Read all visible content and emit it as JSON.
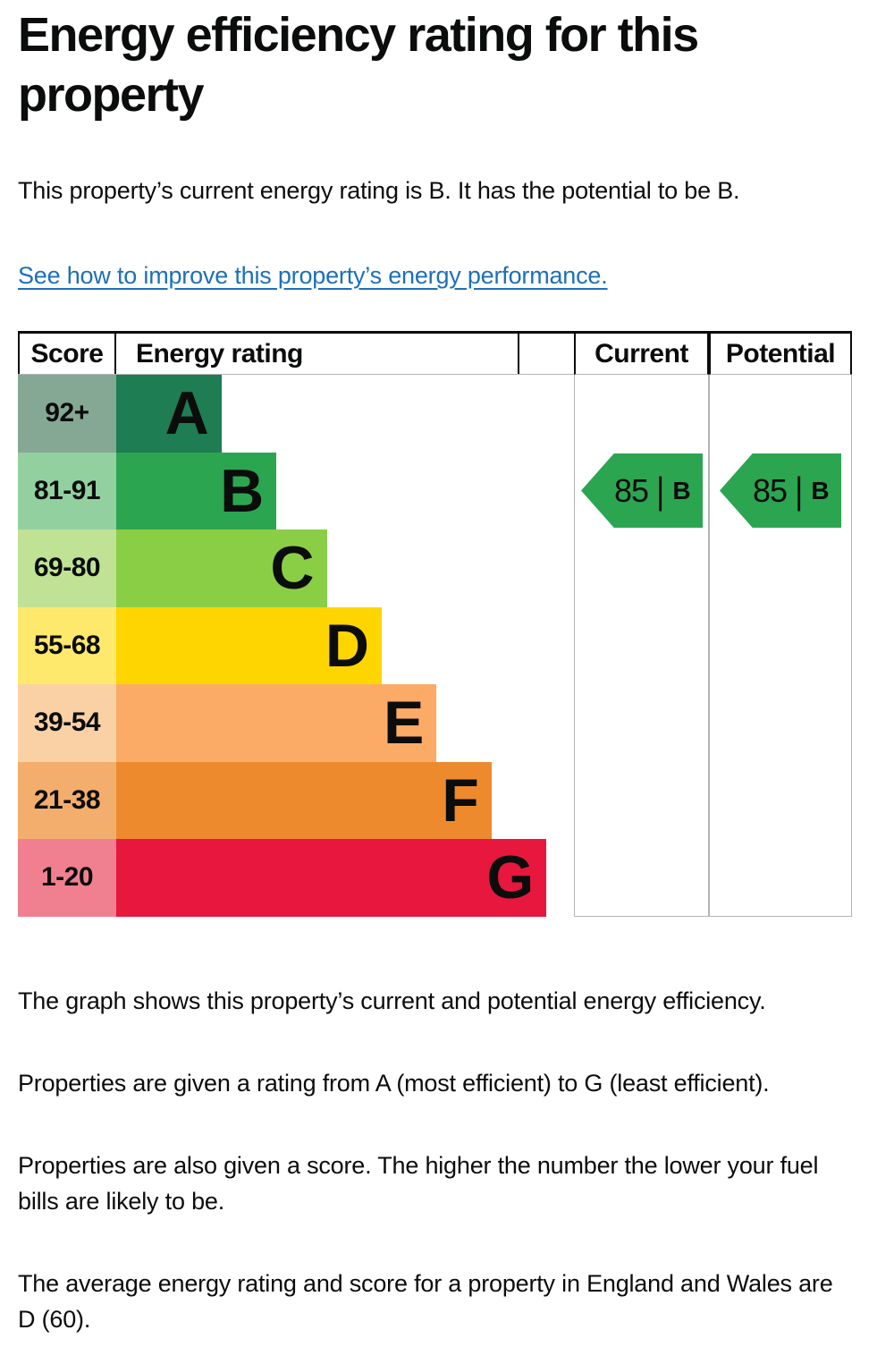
{
  "page": {
    "title": "Energy efficiency rating for this property",
    "intro": "This property’s current energy rating is B. It has the potential to be B.",
    "improve_link": "See how to improve this property’s energy performance.",
    "paragraphs": [
      "The graph shows this property’s current and potential energy efficiency.",
      "Properties are given a rating from A (most efficient) to G (least efficient).",
      "Properties are also given a score. The higher the number the lower your fuel bills are likely to be.",
      "The average energy rating and score for a property in England and Wales are D (60)."
    ],
    "text_color": "#0b0c0c",
    "link_color": "#1d70b8"
  },
  "chart_data": {
    "type": "bar",
    "title": "Energy efficiency rating for this property",
    "columns": [
      "Score",
      "Energy rating",
      "Current",
      "Potential"
    ],
    "grid_color": "#b1b4b6",
    "bands": [
      {
        "letter": "A",
        "score_range": "92+",
        "width_pct": 23,
        "color": "#1e7d53",
        "score_bg": "#85a894"
      },
      {
        "letter": "B",
        "score_range": "81-91",
        "width_pct": 35,
        "color": "#2ca551",
        "score_bg": "#92d09f"
      },
      {
        "letter": "C",
        "score_range": "69-80",
        "width_pct": 46,
        "color": "#8ace46",
        "score_bg": "#c0e295"
      },
      {
        "letter": "D",
        "score_range": "55-68",
        "width_pct": 58,
        "color": "#ffd500",
        "score_bg": "#ffe96d"
      },
      {
        "letter": "E",
        "score_range": "39-54",
        "width_pct": 70,
        "color": "#fbab66",
        "score_bg": "#fad1a5"
      },
      {
        "letter": "F",
        "score_range": "21-38",
        "width_pct": 82,
        "color": "#ee8a2e",
        "score_bg": "#f3ae6d"
      },
      {
        "letter": "G",
        "score_range": "1-20",
        "width_pct": 94,
        "color": "#e8173d",
        "score_bg": "#f0808f"
      }
    ],
    "current": {
      "label": "Current",
      "score": "85",
      "divider": "|",
      "band": "B",
      "color": "#2ca551"
    },
    "potential": {
      "label": "Potential",
      "score": "85",
      "divider": "|",
      "band": "B",
      "color": "#2ca551"
    }
  }
}
